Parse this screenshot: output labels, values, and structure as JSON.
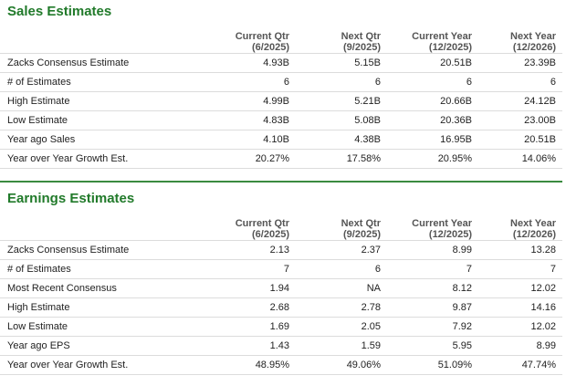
{
  "sales": {
    "title": "Sales Estimates",
    "columns": [
      {
        "line1": "Current Qtr",
        "line2": "(6/2025)"
      },
      {
        "line1": "Next Qtr",
        "line2": "(9/2025)"
      },
      {
        "line1": "Current Year",
        "line2": "(12/2025)"
      },
      {
        "line1": "Next Year",
        "line2": "(12/2026)"
      }
    ],
    "rows": [
      {
        "label": "Zacks Consensus Estimate",
        "values": [
          "4.93B",
          "5.15B",
          "20.51B",
          "23.39B"
        ]
      },
      {
        "label": "# of Estimates",
        "values": [
          "6",
          "6",
          "6",
          "6"
        ]
      },
      {
        "label": "High Estimate",
        "values": [
          "4.99B",
          "5.21B",
          "20.66B",
          "24.12B"
        ]
      },
      {
        "label": "Low Estimate",
        "values": [
          "4.83B",
          "5.08B",
          "20.36B",
          "23.00B"
        ]
      },
      {
        "label": "Year ago Sales",
        "values": [
          "4.10B",
          "4.38B",
          "16.95B",
          "20.51B"
        ]
      },
      {
        "label": "Year over Year Growth Est.",
        "values": [
          "20.27%",
          "17.58%",
          "20.95%",
          "14.06%"
        ]
      }
    ]
  },
  "earnings": {
    "title": "Earnings Estimates",
    "columns": [
      {
        "line1": "Current Qtr",
        "line2": "(6/2025)"
      },
      {
        "line1": "Next Qtr",
        "line2": "(9/2025)"
      },
      {
        "line1": "Current Year",
        "line2": "(12/2025)"
      },
      {
        "line1": "Next Year",
        "line2": "(12/2026)"
      }
    ],
    "rows": [
      {
        "label": "Zacks Consensus Estimate",
        "values": [
          "2.13",
          "2.37",
          "8.99",
          "13.28"
        ]
      },
      {
        "label": "# of Estimates",
        "values": [
          "7",
          "6",
          "7",
          "7"
        ]
      },
      {
        "label": "Most Recent Consensus",
        "values": [
          "1.94",
          "NA",
          "8.12",
          "12.02"
        ]
      },
      {
        "label": "High Estimate",
        "values": [
          "2.68",
          "2.78",
          "9.87",
          "14.16"
        ]
      },
      {
        "label": "Low Estimate",
        "values": [
          "1.69",
          "2.05",
          "7.92",
          "12.02"
        ]
      },
      {
        "label": "Year ago EPS",
        "values": [
          "1.43",
          "1.59",
          "5.95",
          "8.99"
        ]
      },
      {
        "label": "Year over Year Growth Est.",
        "values": [
          "48.95%",
          "49.06%",
          "51.09%",
          "47.74%"
        ]
      }
    ]
  },
  "colors": {
    "title_green": "#217a2a",
    "divider_green": "#3a8b3f",
    "row_border": "#dcdcdc"
  }
}
